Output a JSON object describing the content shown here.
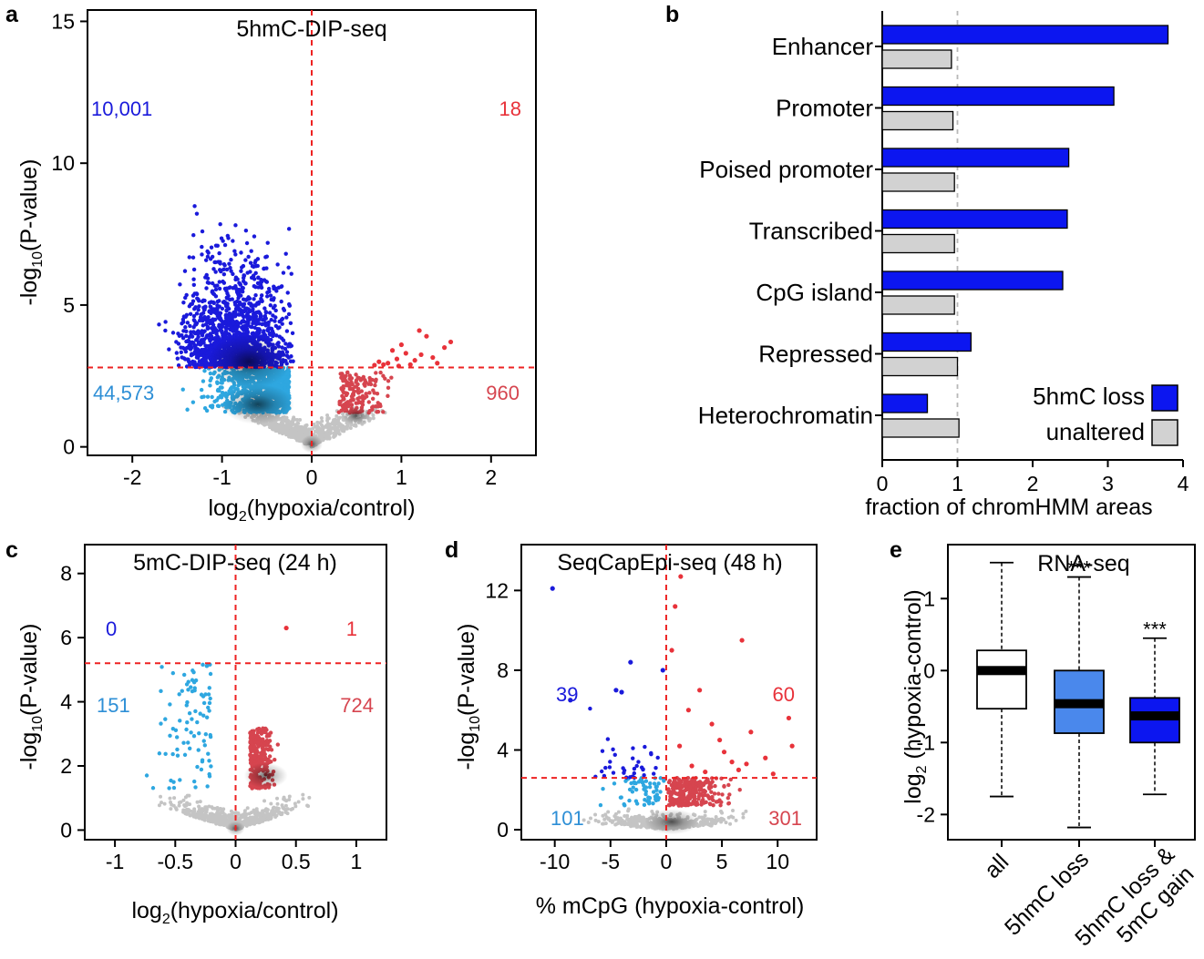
{
  "panels": {
    "a": {
      "label": "a"
    },
    "b": {
      "label": "b"
    },
    "c": {
      "label": "c"
    },
    "d": {
      "label": "d"
    },
    "e": {
      "label": "e"
    }
  },
  "chart_data": [
    {
      "panel": "a",
      "type": "scatter",
      "title": "5hmC-DIP-seq",
      "xlabel": "log2(hypoxia/control)",
      "ylabel": "-log10(P-value)",
      "xlim": [
        -2.5,
        2.5
      ],
      "ylim": [
        -0.3,
        15.4
      ],
      "xticks": [
        -2,
        -1,
        0,
        1,
        2
      ],
      "yticks": [
        0,
        5,
        10,
        15
      ],
      "threshold_y": 2.8,
      "counts": {
        "significant_loss": "10,001",
        "significant_gain": "18",
        "nominal_loss": "44,573",
        "nominal_gain": "960"
      },
      "colors": {
        "significant_loss": "#1a1adb",
        "nominal_loss": "#2ea7e0",
        "nominal_gain": "#d6454f",
        "significant_gain": "#e8323a",
        "background": "#c4c4c4",
        "threshold": "#ee2222"
      }
    },
    {
      "panel": "b",
      "type": "bar",
      "orientation": "horizontal",
      "xlabel": "fraction of chromHMM areas",
      "xlim": [
        0,
        4
      ],
      "xticks": [
        0,
        1,
        2,
        3,
        4
      ],
      "reference_line": 1,
      "categories": [
        "Enhancer",
        "Promoter",
        "Poised promoter",
        "Transcribed",
        "CpG island",
        "Repressed",
        "Heterochromatin"
      ],
      "series": [
        {
          "name": "5hmC loss",
          "color": "#0c16f0",
          "values": [
            3.8,
            3.08,
            2.48,
            2.46,
            2.4,
            1.18,
            0.6
          ]
        },
        {
          "name": "unaltered",
          "color": "#d2d2d2",
          "values": [
            0.92,
            0.94,
            0.96,
            0.96,
            0.96,
            1.0,
            1.02
          ]
        }
      ],
      "legend_position": "bottom-right"
    },
    {
      "panel": "c",
      "type": "scatter",
      "title": "5mC-DIP-seq (24 h)",
      "xlabel": "log2(hypoxia/control)",
      "ylabel": "-log10(P-value)",
      "xlim": [
        -1.25,
        1.25
      ],
      "ylim": [
        -0.3,
        8.9
      ],
      "xticks": [
        -1,
        -0.5,
        0,
        0.5,
        1
      ],
      "yticks": [
        0,
        2,
        4,
        6,
        8
      ],
      "threshold_y": 5.2,
      "counts": {
        "significant_loss": "0",
        "significant_gain": "1",
        "nominal_loss": "151",
        "nominal_gain": "724"
      },
      "colors": {
        "nominal_loss": "#2ea7e0",
        "nominal_gain": "#d6454f",
        "significant_gain": "#e8323a",
        "background": "#c4c4c4",
        "threshold": "#ee2222"
      }
    },
    {
      "panel": "d",
      "type": "scatter",
      "title": "SeqCapEpi-seq (48 h)",
      "xlabel": "% mCpG (hypoxia-control)",
      "ylabel": "-log10(P-value)",
      "xlim": [
        -13,
        13.5
      ],
      "ylim": [
        -0.5,
        14.3
      ],
      "xticks": [
        -10,
        -5,
        0,
        5,
        10
      ],
      "yticks": [
        0,
        4,
        8,
        12
      ],
      "threshold_y": 2.6,
      "counts": {
        "significant_loss": "39",
        "significant_gain": "60",
        "nominal_loss": "101",
        "nominal_gain": "301"
      },
      "colors": {
        "significant_loss": "#1a1adb",
        "nominal_loss": "#2ea7e0",
        "nominal_gain": "#d6454f",
        "significant_gain": "#e8323a",
        "background": "#c4c4c4",
        "threshold": "#ee2222"
      }
    },
    {
      "panel": "e",
      "type": "box",
      "title": "RNA-seq",
      "ylabel": "log2 (hypoxia-control)",
      "ylim": [
        -2.35,
        1.75
      ],
      "yticks": [
        -2,
        -1,
        0,
        1
      ],
      "categories": [
        "all",
        "5hmC loss",
        "5hmC loss & 5mC gain"
      ],
      "boxes": [
        {
          "name": "all",
          "whisker_low": -1.75,
          "q1": -0.53,
          "median": 0.0,
          "q3": 0.28,
          "whisker_high": 1.5,
          "color": "#ffffff",
          "annotation": ""
        },
        {
          "name": "5hmC loss",
          "whisker_low": -2.18,
          "q1": -0.87,
          "median": -0.46,
          "q3": 0.0,
          "whisker_high": 1.3,
          "color": "#4a88ec",
          "annotation": "***"
        },
        {
          "name": "5hmC loss & 5mC gain",
          "whisker_low": -1.72,
          "q1": -1.0,
          "median": -0.63,
          "q3": -0.38,
          "whisker_high": 0.45,
          "color": "#0c16f0",
          "annotation": "***"
        }
      ]
    }
  ]
}
